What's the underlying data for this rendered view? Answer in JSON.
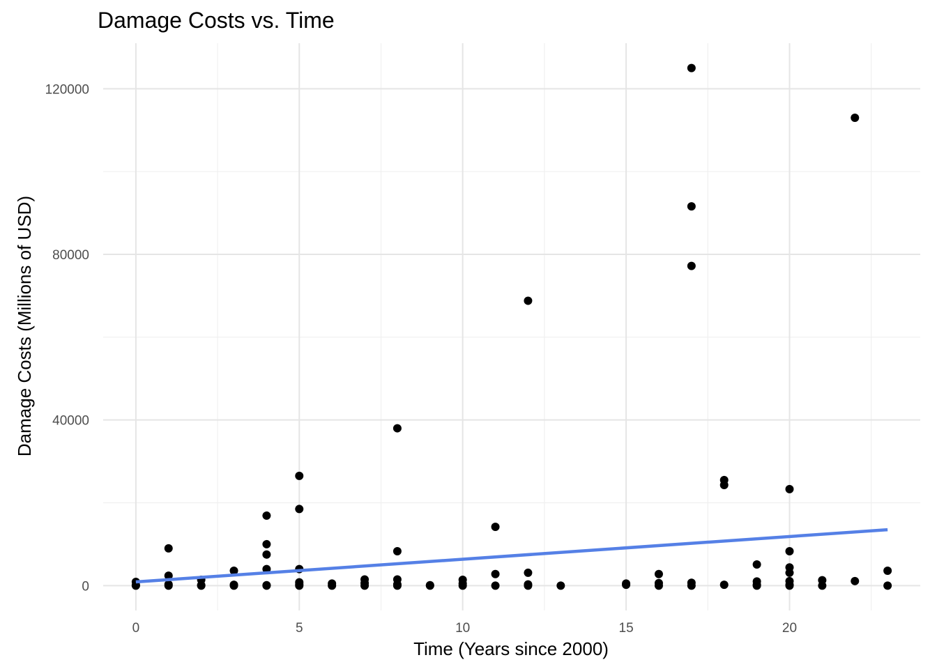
{
  "chart_data": {
    "type": "scatter",
    "title": "Damage Costs vs. Time",
    "xlabel": "Time (Years since 2000)",
    "ylabel": "Damage Costs (Millions of USD)",
    "xlim": [
      -1,
      24
    ],
    "ylim": [
      -6000,
      131000
    ],
    "x_ticks": [
      0,
      5,
      10,
      15,
      20
    ],
    "x_tick_labels": [
      "0",
      "5",
      "10",
      "15",
      "20"
    ],
    "y_ticks": [
      0,
      40000,
      80000,
      120000
    ],
    "y_tick_labels": [
      "0",
      "40000",
      "80000",
      "120000"
    ],
    "grid": true,
    "legend": "none",
    "colors": {
      "points": "#000000",
      "trend": "#5580e6"
    },
    "points": [
      {
        "x": 0,
        "y": 900
      },
      {
        "x": 0,
        "y": 100
      },
      {
        "x": 0,
        "y": 0
      },
      {
        "x": 1,
        "y": 9000
      },
      {
        "x": 1,
        "y": 2400
      },
      {
        "x": 1,
        "y": 300
      },
      {
        "x": 1,
        "y": 0
      },
      {
        "x": 2,
        "y": 1400
      },
      {
        "x": 2,
        "y": 100
      },
      {
        "x": 2,
        "y": 0
      },
      {
        "x": 3,
        "y": 3600
      },
      {
        "x": 3,
        "y": 200
      },
      {
        "x": 3,
        "y": 0
      },
      {
        "x": 4,
        "y": 16900
      },
      {
        "x": 4,
        "y": 10000
      },
      {
        "x": 4,
        "y": 7500
      },
      {
        "x": 4,
        "y": 4000
      },
      {
        "x": 4,
        "y": 100
      },
      {
        "x": 4,
        "y": 0
      },
      {
        "x": 5,
        "y": 26500
      },
      {
        "x": 5,
        "y": 18500
      },
      {
        "x": 5,
        "y": 4000
      },
      {
        "x": 5,
        "y": 800
      },
      {
        "x": 5,
        "y": 300
      },
      {
        "x": 5,
        "y": 0
      },
      {
        "x": 6,
        "y": 500
      },
      {
        "x": 6,
        "y": 0
      },
      {
        "x": 7,
        "y": 1500
      },
      {
        "x": 7,
        "y": 600
      },
      {
        "x": 7,
        "y": 0
      },
      {
        "x": 8,
        "y": 38000
      },
      {
        "x": 8,
        "y": 8300
      },
      {
        "x": 8,
        "y": 1500
      },
      {
        "x": 8,
        "y": 300
      },
      {
        "x": 8,
        "y": 0
      },
      {
        "x": 9,
        "y": 100
      },
      {
        "x": 9,
        "y": 0
      },
      {
        "x": 10,
        "y": 1400
      },
      {
        "x": 10,
        "y": 500
      },
      {
        "x": 10,
        "y": 0
      },
      {
        "x": 11,
        "y": 14200
      },
      {
        "x": 11,
        "y": 2800
      },
      {
        "x": 11,
        "y": 0
      },
      {
        "x": 12,
        "y": 68800
      },
      {
        "x": 12,
        "y": 3100
      },
      {
        "x": 12,
        "y": 300
      },
      {
        "x": 12,
        "y": 0
      },
      {
        "x": 13,
        "y": 0
      },
      {
        "x": 15,
        "y": 500
      },
      {
        "x": 15,
        "y": 200
      },
      {
        "x": 16,
        "y": 2800
      },
      {
        "x": 16,
        "y": 600
      },
      {
        "x": 16,
        "y": 0
      },
      {
        "x": 17,
        "y": 125000
      },
      {
        "x": 17,
        "y": 91600
      },
      {
        "x": 17,
        "y": 77200
      },
      {
        "x": 17,
        "y": 700
      },
      {
        "x": 17,
        "y": 0
      },
      {
        "x": 18,
        "y": 25500
      },
      {
        "x": 18,
        "y": 24300
      },
      {
        "x": 18,
        "y": 200
      },
      {
        "x": 19,
        "y": 5100
      },
      {
        "x": 19,
        "y": 1000
      },
      {
        "x": 19,
        "y": 200
      },
      {
        "x": 19,
        "y": 0
      },
      {
        "x": 20,
        "y": 23300
      },
      {
        "x": 20,
        "y": 8300
      },
      {
        "x": 20,
        "y": 4400
      },
      {
        "x": 20,
        "y": 3100
      },
      {
        "x": 20,
        "y": 1100
      },
      {
        "x": 20,
        "y": 200
      },
      {
        "x": 20,
        "y": 0
      },
      {
        "x": 21,
        "y": 1300
      },
      {
        "x": 21,
        "y": 0
      },
      {
        "x": 22,
        "y": 113000
      },
      {
        "x": 22,
        "y": 1100
      },
      {
        "x": 23,
        "y": 3600
      },
      {
        "x": 23,
        "y": 0
      }
    ],
    "trend_line": {
      "x": [
        0,
        23
      ],
      "y": [
        900,
        13500
      ]
    }
  }
}
